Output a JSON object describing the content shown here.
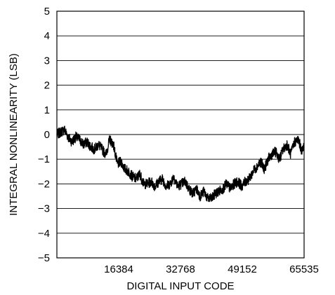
{
  "chart_data": {
    "type": "line",
    "xlabel": "DIGITAL INPUT CODE",
    "ylabel": "INTEGRAL NONLINEARITY (LSB)",
    "xlim": [
      0,
      65535
    ],
    "ylim": [
      -5,
      5
    ],
    "x_ticks": [
      16384,
      32768,
      49152,
      65535
    ],
    "y_ticks": [
      5,
      4,
      3,
      2,
      1,
      0,
      -1,
      -2,
      -3,
      -4,
      -5
    ],
    "x_tick_labels": [
      "16384",
      "32768",
      "49152",
      "65535"
    ],
    "y_tick_labels": [
      "5",
      "4",
      "3",
      "2",
      "1",
      "0",
      "−1",
      "−2",
      "−3",
      "−4",
      "−5"
    ],
    "grid": true,
    "legend": "none",
    "line_color": "#000000",
    "series": [
      {
        "x": [
          0,
          1000,
          2000,
          3000,
          4000,
          5000,
          6000,
          7000,
          8000,
          9000,
          10000,
          11000,
          12000,
          13000,
          14000,
          15000,
          16000,
          17000,
          18000,
          19000,
          20000,
          21000,
          22000,
          23000,
          24000,
          25000,
          26000,
          27000,
          28000,
          29000,
          30000,
          31000,
          32000,
          33000,
          34000,
          35000,
          36000,
          37000,
          38000,
          39000,
          40000,
          41000,
          42000,
          43000,
          44000,
          45000,
          46000,
          47000,
          48000,
          49000,
          50000,
          51000,
          52000,
          53000,
          54000,
          55000,
          56000,
          57000,
          58000,
          59000,
          60000,
          61000,
          62000,
          63000,
          64000,
          65000,
          65535
        ],
        "y": [
          0.0,
          0.1,
          0.2,
          -0.1,
          -0.3,
          -0.1,
          -0.2,
          -0.4,
          -0.3,
          -0.5,
          -0.6,
          -0.4,
          -0.6,
          -0.8,
          -0.2,
          -0.4,
          -1.2,
          -1.1,
          -1.4,
          -1.5,
          -1.7,
          -1.8,
          -1.6,
          -2.0,
          -2.0,
          -1.9,
          -2.1,
          -1.9,
          -1.8,
          -2.1,
          -2.0,
          -1.7,
          -2.1,
          -2.0,
          -1.9,
          -2.2,
          -2.4,
          -2.2,
          -2.5,
          -2.3,
          -2.6,
          -2.6,
          -2.4,
          -2.3,
          -2.2,
          -2.0,
          -2.2,
          -2.0,
          -1.9,
          -2.1,
          -1.9,
          -1.8,
          -1.5,
          -1.3,
          -1.1,
          -1.4,
          -1.0,
          -0.8,
          -0.7,
          -1.0,
          -0.6,
          -0.4,
          -0.8,
          -0.3,
          -0.2,
          -0.7,
          -0.4
        ]
      }
    ]
  }
}
